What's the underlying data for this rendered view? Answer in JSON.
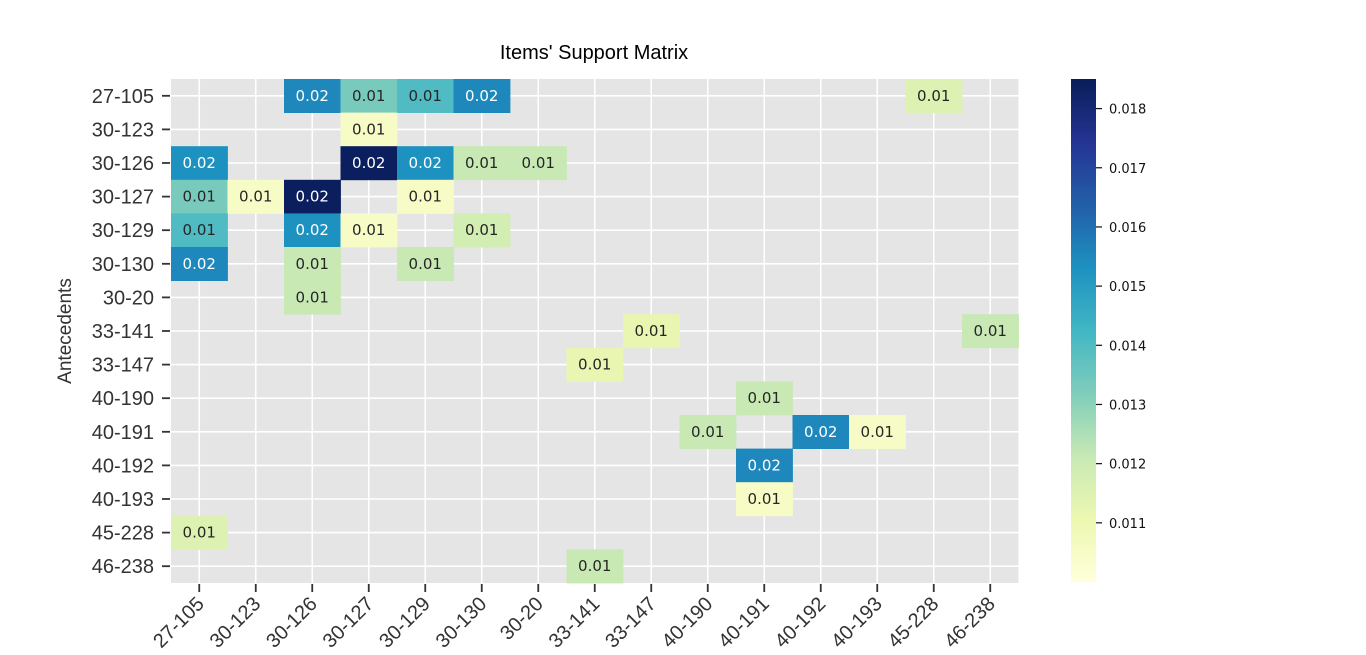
{
  "chart_data": {
    "type": "heatmap",
    "title": "Items' Support Matrix",
    "ylabel": "Antecedents",
    "xlabel": "",
    "x_categories": [
      "27-105",
      "30-123",
      "30-126",
      "30-127",
      "30-129",
      "30-130",
      "30-20",
      "33-141",
      "33-147",
      "40-190",
      "40-191",
      "40-192",
      "40-193",
      "45-228",
      "46-238"
    ],
    "y_categories": [
      "27-105",
      "30-123",
      "30-126",
      "30-127",
      "30-129",
      "30-130",
      "30-20",
      "33-141",
      "33-147",
      "40-190",
      "40-191",
      "40-192",
      "40-193",
      "45-228",
      "46-238"
    ],
    "cells": [
      {
        "row": "27-105",
        "col": "30-126",
        "value": 0.0155,
        "label": "0.02"
      },
      {
        "row": "27-105",
        "col": "30-127",
        "value": 0.0133,
        "label": "0.01"
      },
      {
        "row": "27-105",
        "col": "30-129",
        "value": 0.014,
        "label": "0.01"
      },
      {
        "row": "27-105",
        "col": "30-130",
        "value": 0.0155,
        "label": "0.02"
      },
      {
        "row": "27-105",
        "col": "45-228",
        "value": 0.0115,
        "label": "0.01"
      },
      {
        "row": "30-123",
        "col": "30-127",
        "value": 0.0105,
        "label": "0.01"
      },
      {
        "row": "30-126",
        "col": "27-105",
        "value": 0.0153,
        "label": "0.02"
      },
      {
        "row": "30-126",
        "col": "30-127",
        "value": 0.0184,
        "label": "0.02"
      },
      {
        "row": "30-126",
        "col": "30-129",
        "value": 0.0153,
        "label": "0.02"
      },
      {
        "row": "30-126",
        "col": "30-130",
        "value": 0.0121,
        "label": "0.01"
      },
      {
        "row": "30-126",
        "col": "30-20",
        "value": 0.0121,
        "label": "0.01"
      },
      {
        "row": "30-127",
        "col": "27-105",
        "value": 0.0133,
        "label": "0.01"
      },
      {
        "row": "30-127",
        "col": "30-123",
        "value": 0.0105,
        "label": "0.01"
      },
      {
        "row": "30-127",
        "col": "30-126",
        "value": 0.0184,
        "label": "0.02"
      },
      {
        "row": "30-127",
        "col": "30-129",
        "value": 0.0105,
        "label": "0.01"
      },
      {
        "row": "30-129",
        "col": "27-105",
        "value": 0.014,
        "label": "0.01"
      },
      {
        "row": "30-129",
        "col": "30-126",
        "value": 0.0153,
        "label": "0.02"
      },
      {
        "row": "30-129",
        "col": "30-127",
        "value": 0.0105,
        "label": "0.01"
      },
      {
        "row": "30-129",
        "col": "30-130",
        "value": 0.0118,
        "label": "0.01"
      },
      {
        "row": "30-130",
        "col": "27-105",
        "value": 0.0155,
        "label": "0.02"
      },
      {
        "row": "30-130",
        "col": "30-126",
        "value": 0.0121,
        "label": "0.01"
      },
      {
        "row": "30-130",
        "col": "30-129",
        "value": 0.0121,
        "label": "0.01"
      },
      {
        "row": "30-20",
        "col": "30-126",
        "value": 0.0121,
        "label": "0.01"
      },
      {
        "row": "33-141",
        "col": "33-147",
        "value": 0.0112,
        "label": "0.01"
      },
      {
        "row": "33-141",
        "col": "46-238",
        "value": 0.0121,
        "label": "0.01"
      },
      {
        "row": "33-147",
        "col": "33-141",
        "value": 0.0112,
        "label": "0.01"
      },
      {
        "row": "40-190",
        "col": "40-191",
        "value": 0.0121,
        "label": "0.01"
      },
      {
        "row": "40-191",
        "col": "40-190",
        "value": 0.0121,
        "label": "0.01"
      },
      {
        "row": "40-191",
        "col": "40-192",
        "value": 0.0155,
        "label": "0.02"
      },
      {
        "row": "40-191",
        "col": "40-193",
        "value": 0.0105,
        "label": "0.01"
      },
      {
        "row": "40-192",
        "col": "40-191",
        "value": 0.0155,
        "label": "0.02"
      },
      {
        "row": "40-193",
        "col": "40-191",
        "value": 0.0105,
        "label": "0.01"
      },
      {
        "row": "45-228",
        "col": "27-105",
        "value": 0.0115,
        "label": "0.01"
      },
      {
        "row": "46-238",
        "col": "33-141",
        "value": 0.0121,
        "label": "0.01"
      }
    ],
    "colorbar": {
      "colormap": "YlGnBu",
      "range": [
        0.01,
        0.0185
      ],
      "ticks": [
        0.011,
        0.012,
        0.013,
        0.014,
        0.015,
        0.016,
        0.017,
        0.018
      ],
      "tick_labels": [
        "0.011",
        "0.012",
        "0.013",
        "0.014",
        "0.015",
        "0.016",
        "0.017",
        "0.018"
      ]
    },
    "background_color": "#e5e5e5",
    "grid": true,
    "legend": "colorbar-right"
  }
}
